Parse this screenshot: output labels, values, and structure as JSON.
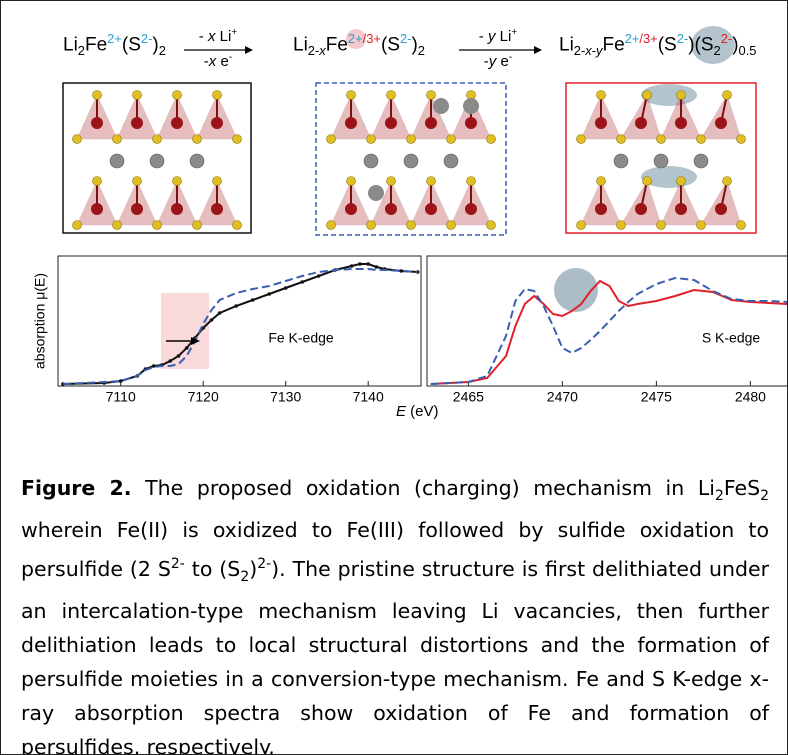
{
  "scheme": {
    "formulas": [
      [
        {
          "t": "Li"
        },
        {
          "sub": "2"
        },
        {
          "t": "Fe"
        },
        {
          "sup": "2+",
          "color": "#2a9fc9"
        },
        {
          "t": "(S"
        },
        {
          "sup": "2-",
          "color": "#2a9fc9"
        },
        {
          "t": ")"
        },
        {
          "sub": "2"
        }
      ],
      [
        {
          "t": "Li"
        },
        {
          "sub": "2-"
        },
        {
          "subi": "x"
        },
        {
          "t": "Fe"
        },
        {
          "sup": "2+",
          "color": "#2a9fc9"
        },
        {
          "sup": "/3+",
          "color": "#e0202a"
        },
        {
          "t": "(S"
        },
        {
          "sup": "2-",
          "color": "#2a9fc9"
        },
        {
          "t": ")"
        },
        {
          "sub": "2"
        }
      ],
      [
        {
          "t": "Li"
        },
        {
          "sub": "2-"
        },
        {
          "subi": "x"
        },
        {
          "sub": "-"
        },
        {
          "subi": "y"
        },
        {
          "t": "Fe"
        },
        {
          "sup": "2+",
          "color": "#2a9fc9"
        },
        {
          "sup": "/3+",
          "color": "#e0202a"
        },
        {
          "t": "(S"
        },
        {
          "sup": "2-",
          "color": "#2a9fc9"
        },
        {
          "t": ")(S"
        },
        {
          "sub": "2"
        },
        {
          "sup": "2-",
          "color": "#e0202a"
        },
        {
          "t": ")"
        },
        {
          "sub": "0.5"
        }
      ]
    ],
    "arrows": [
      {
        "above": [
          {
            "t": "- "
          },
          {
            "i": "x"
          },
          {
            "t": " Li"
          },
          {
            "sup": "+"
          }
        ],
        "below": [
          {
            "t": "-"
          },
          {
            "i": "x"
          },
          {
            "t": " e"
          },
          {
            "sup": "-"
          }
        ]
      },
      {
        "above": [
          {
            "t": "- "
          },
          {
            "i": "y"
          },
          {
            "t": " Li"
          },
          {
            "sup": "+"
          }
        ],
        "below": [
          {
            "t": "-"
          },
          {
            "i": "y"
          },
          {
            "t": " e"
          },
          {
            "sup": "-"
          }
        ]
      }
    ]
  },
  "chart_data": [
    {
      "type": "line",
      "annotation": "Fe K-edge",
      "ylabel": "absorption μ(E)",
      "x": [
        7103,
        7108,
        7110,
        7112,
        7113,
        7114,
        7115,
        7116,
        7117,
        7118,
        7119,
        7120,
        7121,
        7122,
        7124,
        7126,
        7128,
        7130,
        7132,
        7134,
        7136,
        7138,
        7139,
        7140,
        7141,
        7142,
        7144,
        7146
      ],
      "series": [
        {
          "color": "#111111",
          "dash": false,
          "markers": true,
          "values": [
            0.02,
            0.03,
            0.05,
            0.1,
            0.17,
            0.2,
            0.21,
            0.25,
            0.3,
            0.38,
            0.48,
            0.58,
            0.66,
            0.73,
            0.8,
            0.86,
            0.92,
            0.98,
            1.04,
            1.1,
            1.16,
            1.2,
            1.22,
            1.22,
            1.19,
            1.17,
            1.15,
            1.14
          ]
        },
        {
          "color": "#3a5fb0",
          "dash": true,
          "markers": false,
          "values": [
            0.02,
            0.04,
            0.05,
            0.1,
            0.16,
            0.19,
            0.2,
            0.2,
            0.22,
            0.3,
            0.45,
            0.62,
            0.76,
            0.86,
            0.93,
            0.97,
            1.0,
            1.05,
            1.1,
            1.14,
            1.16,
            1.17,
            1.17,
            1.17,
            1.16,
            1.16,
            1.15,
            1.14
          ]
        }
      ],
      "xlim": [
        7102.4,
        7146.4
      ],
      "xticks": [
        7110,
        7120,
        7130,
        7140
      ],
      "ylim": [
        0,
        1.3
      ]
    },
    {
      "type": "line",
      "annotation": "S K-edge",
      "x": [
        2463,
        2464,
        2465,
        2466,
        2467,
        2467.5,
        2468,
        2468.5,
        2469,
        2469.5,
        2470,
        2470.5,
        2471,
        2471.5,
        2472,
        2472.5,
        2473,
        2473.5,
        2474,
        2475,
        2476,
        2477,
        2478,
        2479,
        2480,
        2481,
        2482
      ],
      "series": [
        {
          "color": "#e0202a",
          "dash": false,
          "markers": false,
          "values": [
            0.02,
            0.03,
            0.04,
            0.08,
            0.3,
            0.6,
            0.82,
            0.9,
            0.82,
            0.72,
            0.7,
            0.75,
            0.82,
            0.95,
            1.05,
            1.0,
            0.85,
            0.8,
            0.82,
            0.85,
            0.9,
            0.96,
            0.94,
            0.86,
            0.84,
            0.83,
            0.82
          ]
        },
        {
          "color": "#3a5fb0",
          "dash": true,
          "markers": false,
          "values": [
            0.02,
            0.03,
            0.04,
            0.1,
            0.5,
            0.85,
            0.97,
            0.95,
            0.8,
            0.6,
            0.38,
            0.33,
            0.38,
            0.46,
            0.55,
            0.65,
            0.75,
            0.84,
            0.92,
            1.02,
            1.08,
            1.06,
            0.95,
            0.87,
            0.85,
            0.85,
            0.84
          ]
        }
      ],
      "xlim": [
        2462.8,
        2482
      ],
      "xticks": [
        2465,
        2470,
        2475,
        2480
      ],
      "ylim": [
        0,
        1.3
      ]
    }
  ],
  "shared_x_label": [
    {
      "i": "E"
    },
    {
      "t": " (eV)"
    }
  ],
  "caption": [
    {
      "b": "Figure 2."
    },
    {
      "t": " The proposed oxidation (charging) mechanism in Li"
    },
    {
      "sub": "2"
    },
    {
      "t": "FeS"
    },
    {
      "sub": "2"
    },
    {
      "t": " wherein Fe(II) is oxidized to Fe(III) followed by sulfide oxidation to persulfide (2 S"
    },
    {
      "sup": "2-"
    },
    {
      "t": " to (S"
    },
    {
      "sub": "2"
    },
    {
      "t": ")"
    },
    {
      "sup": "2-"
    },
    {
      "t": "). The pristine structure is first delithiated under an intercalation-type mechanism leaving Li vacancies, then further delithiation leads to local structural distortions and the formation of persulfide moieties in a conversion-type mechanism. Fe and S K-edge x-ray absorption spectra show oxidation of Fe and formation of persulfides, respectively."
    }
  ]
}
